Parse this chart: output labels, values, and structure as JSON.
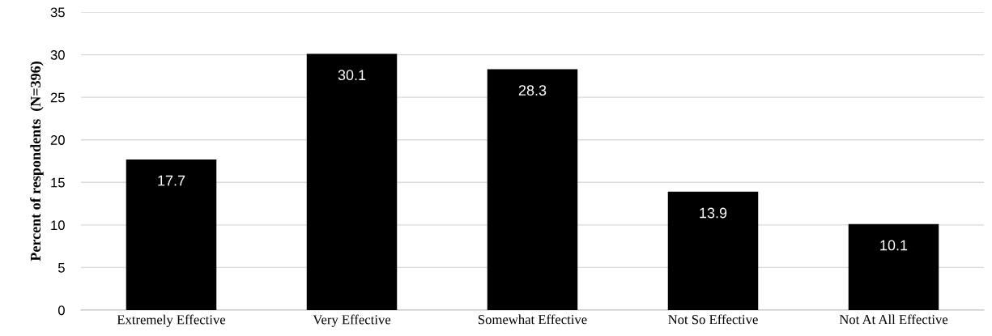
{
  "chart_data": {
    "type": "bar",
    "ylabel": "Percent of respondents  (N=396)",
    "categories": [
      "Extremely Effective",
      "Very Effective",
      "Somewhat Effective",
      "Not So Effective",
      "Not At All Effective"
    ],
    "values": [
      17.7,
      30.1,
      28.3,
      13.9,
      10.1
    ],
    "color": "#000000",
    "ylim": [
      0,
      35
    ],
    "yticks": [
      0,
      5,
      10,
      15,
      20,
      25,
      30,
      35
    ],
    "grid": "y",
    "data_labels": true
  }
}
